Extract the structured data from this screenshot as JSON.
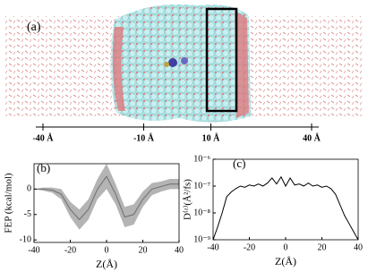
{
  "panel_a": {
    "label": "(a)",
    "xlim": [
      -40,
      40
    ],
    "scale_ticks": [
      {
        "value": -40,
        "label": "-40 Å"
      },
      {
        "value": -10,
        "label": "-10 Å"
      },
      {
        "value": 10,
        "label": "10 Å"
      },
      {
        "value": 40,
        "label": "40 Å"
      }
    ]
  },
  "chart_data": [
    {
      "type": "line",
      "panel_label": "(b)",
      "x_label": "Z(Å)",
      "y_label": "FEP (kcal/mol)",
      "xlim": [
        -40,
        40
      ],
      "xticks": [
        -40,
        -20,
        0,
        20,
        40
      ],
      "ylim": [
        -10.5,
        5
      ],
      "yticks": [
        0,
        -5,
        -10
      ],
      "log_y": false,
      "x": [
        -40,
        -35,
        -30,
        -25,
        -20,
        -15,
        -10,
        -5,
        0,
        5,
        10,
        15,
        20,
        25,
        30,
        35,
        40
      ],
      "series": [
        {
          "color": "#6e6e6e",
          "band_color": "#b4b4b4",
          "values": [
            0,
            0,
            -0.2,
            -1,
            -4,
            -6,
            -4,
            0,
            2.5,
            -1,
            -5.5,
            -5,
            -2,
            0,
            0.5,
            1,
            1
          ],
          "error": [
            0,
            0.3,
            0.5,
            1,
            1.5,
            2,
            2,
            2,
            2.5,
            2,
            2,
            2,
            1.5,
            1.2,
            1,
            1,
            1
          ]
        }
      ]
    },
    {
      "type": "line",
      "panel_label": "(c)",
      "x_label": "Z(Å)",
      "y_label": "D⁽ᶻ⁾(Å²/fs)",
      "xlim": [
        -40,
        40
      ],
      "xticks": [
        -40,
        -20,
        0,
        20,
        40
      ],
      "ylim": [
        1e-09,
        1e-06
      ],
      "log_y": true,
      "yticks": [
        {
          "value": 1e-09,
          "label": "10⁻⁹"
        },
        {
          "value": 1e-08,
          "label": "10⁻⁸"
        },
        {
          "value": 1e-07,
          "label": "10⁻⁷"
        },
        {
          "value": 1e-06,
          "label": "10⁻⁶"
        }
      ],
      "x": [
        -40,
        -37.5,
        -35,
        -32.5,
        -30,
        -27.5,
        -25,
        -22.5,
        -20,
        -17.5,
        -15,
        -12.5,
        -10,
        -7.5,
        -5,
        -2.5,
        0,
        2.5,
        5,
        7.5,
        10,
        12.5,
        15,
        17.5,
        20,
        22.5,
        25,
        27.5,
        30,
        32.5,
        35,
        37.5,
        40
      ],
      "series": [
        {
          "color": "#000000",
          "values": [
            1e-09,
            3e-09,
            1e-08,
            4e-08,
            6e-08,
            8e-08,
            1e-07,
            9e-08,
            1.1e-07,
            1e-07,
            1.2e-07,
            1e-07,
            1.3e-07,
            2e-07,
            1.2e-07,
            2.2e-07,
            1e-07,
            2e-07,
            1.1e-07,
            1.2e-07,
            1e-07,
            1.3e-07,
            1e-07,
            1.1e-07,
            9e-08,
            1e-07,
            8e-08,
            5e-08,
            2e-08,
            8e-09,
            4e-09,
            2e-09,
            1e-09
          ]
        }
      ]
    }
  ]
}
